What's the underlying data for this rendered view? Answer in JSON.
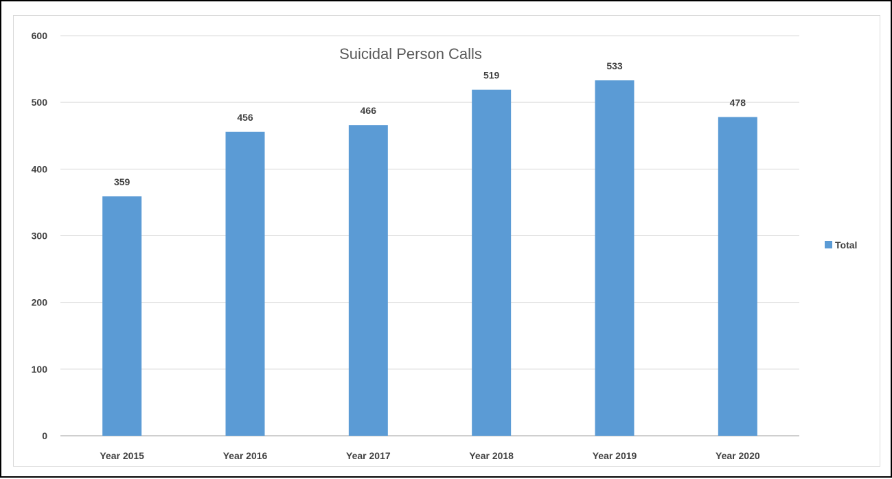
{
  "chart_data": {
    "type": "bar",
    "title": "Suicidal Person Calls",
    "categories": [
      "Year 2015",
      "Year 2016",
      "Year 2017",
      "Year 2018",
      "Year 2019",
      "Year 2020"
    ],
    "series": [
      {
        "name": "Total",
        "values": [
          359,
          456,
          466,
          519,
          533,
          478
        ],
        "color": "#5b9bd5"
      }
    ],
    "ylim": [
      0,
      600
    ],
    "yticks": [
      0,
      100,
      200,
      300,
      400,
      500,
      600
    ],
    "grid": true,
    "legend": "right",
    "data_labels": true,
    "xlabel": "",
    "ylabel": ""
  }
}
